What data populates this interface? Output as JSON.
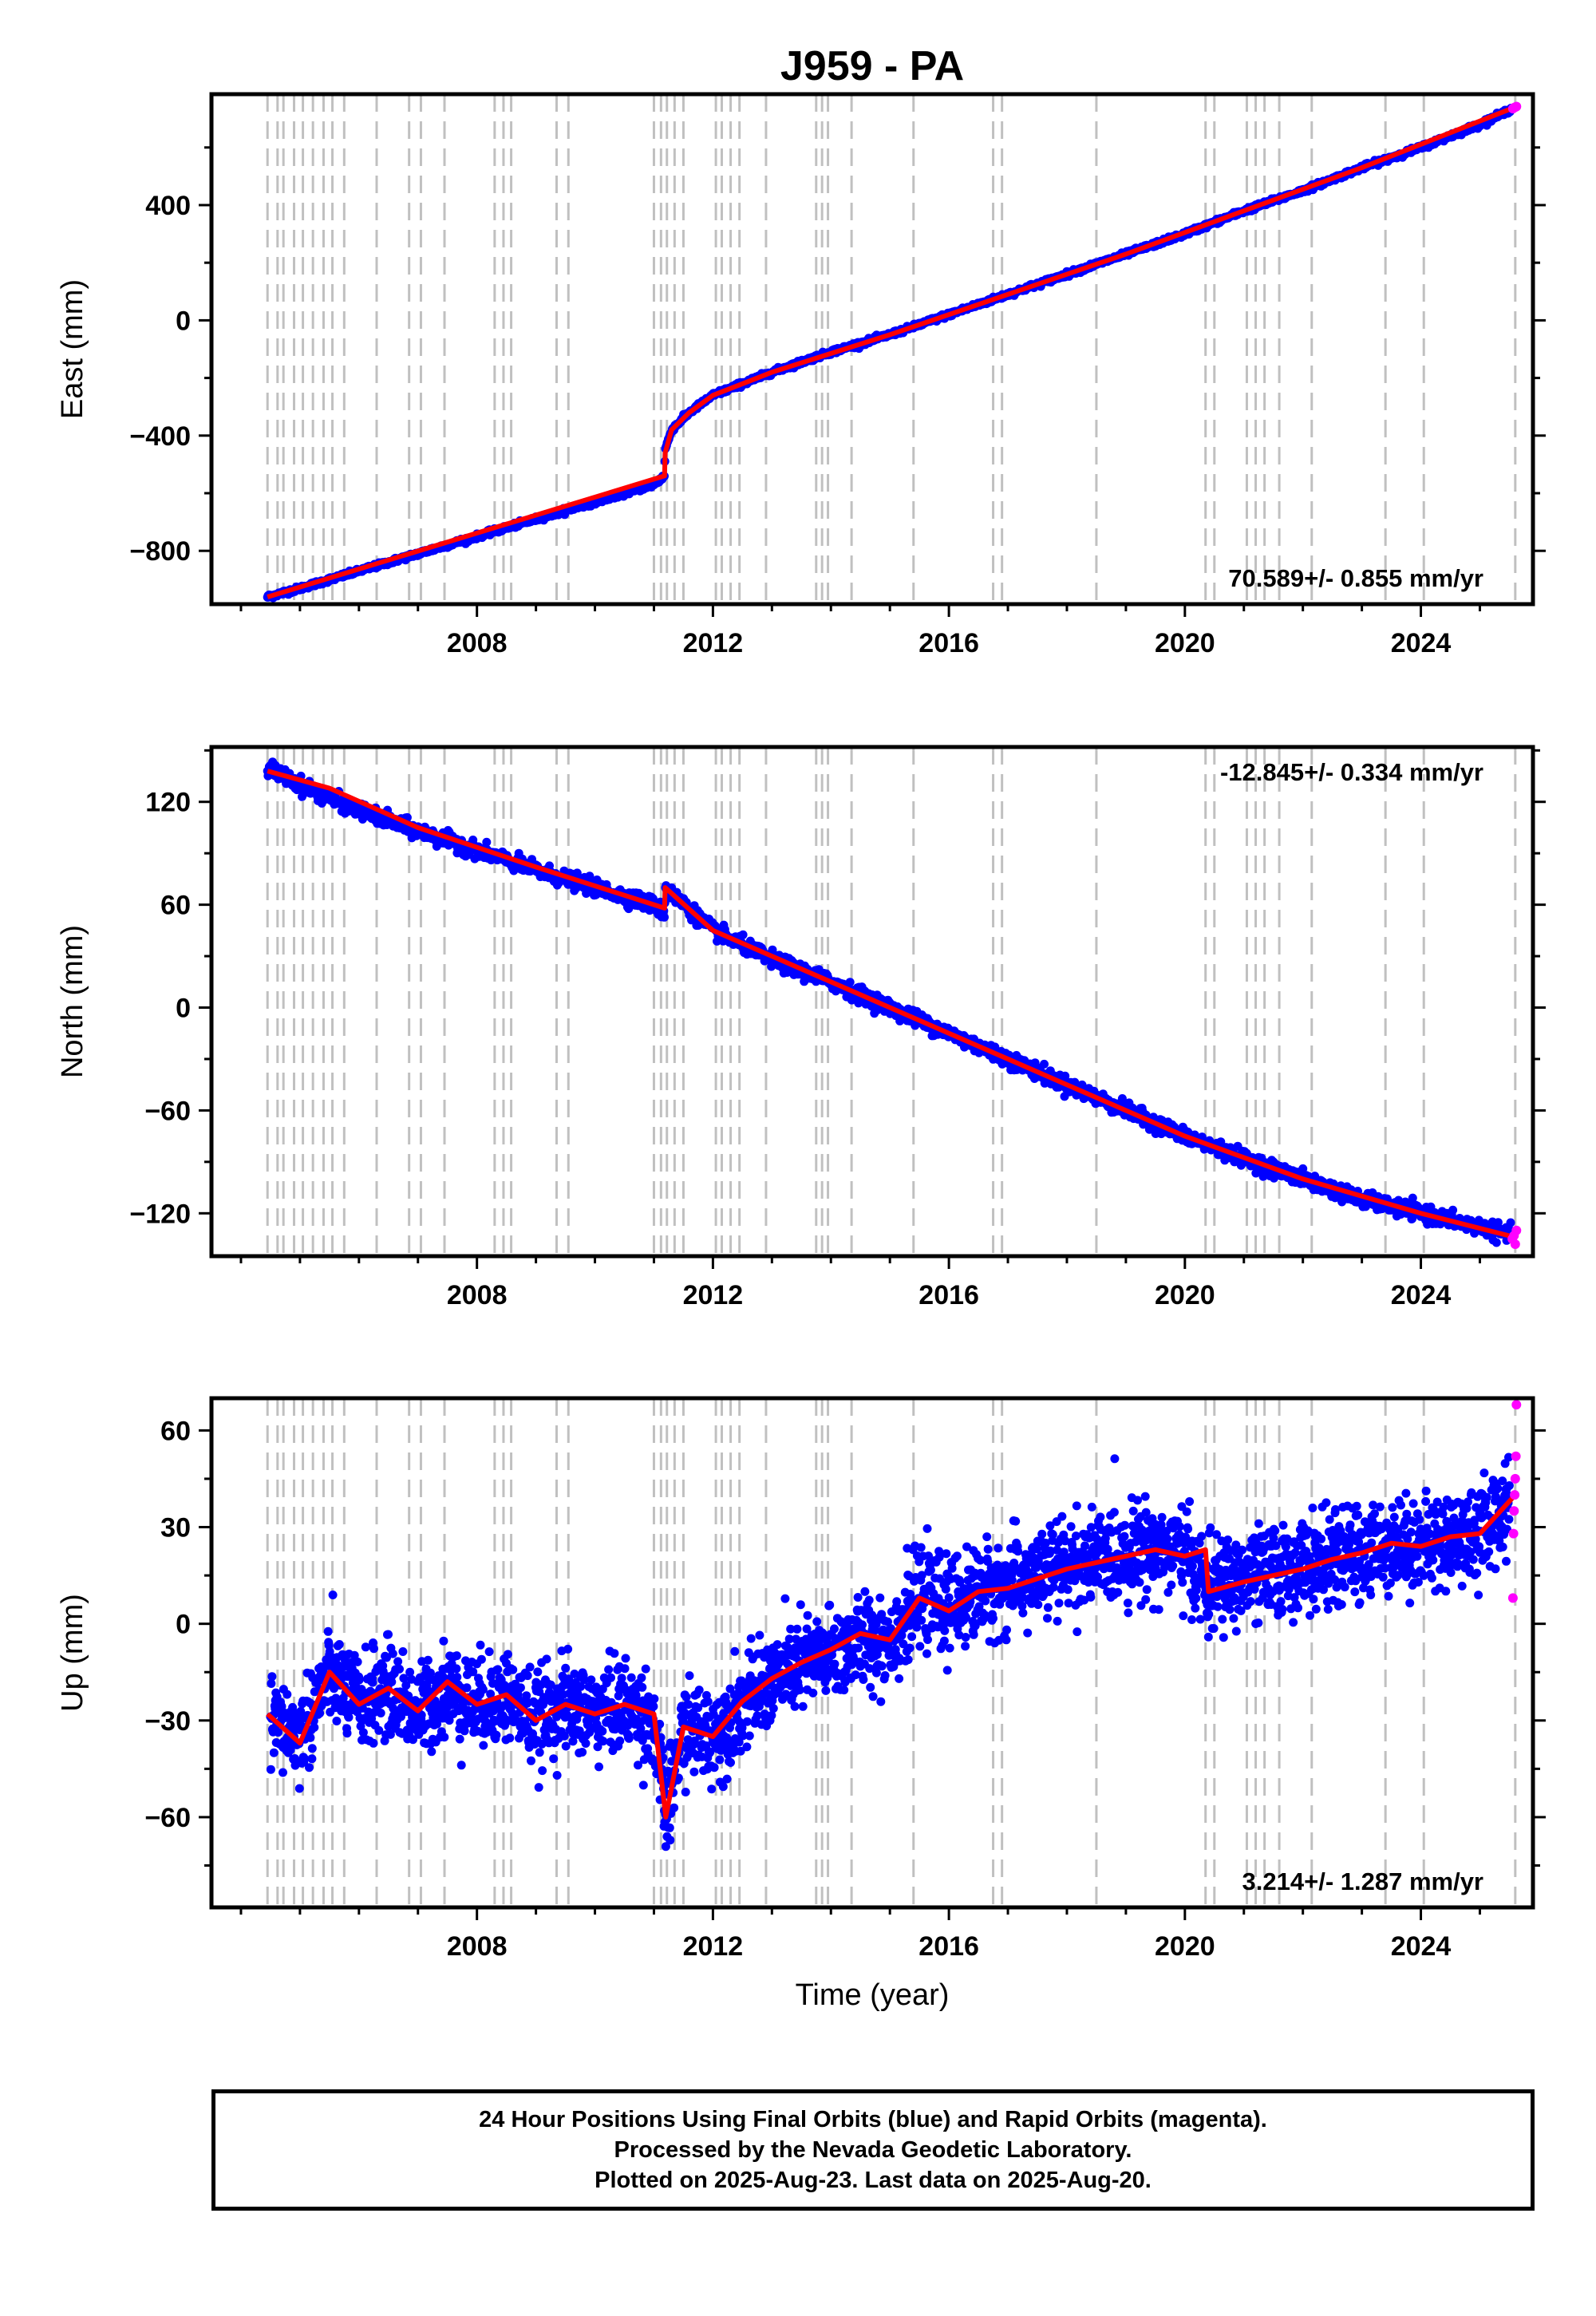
{
  "colors": {
    "final_orbits": "#0000ff",
    "rapid_orbits": "#ff00ff",
    "model_fit": "#ff0000",
    "event_lines": "#c0c0c0"
  },
  "chart_data": {
    "title": "J959 - PA",
    "type": "scatter",
    "xlabel": "Time (year)",
    "xlim": [
      2003.5,
      2025.9
    ],
    "xticks": [
      2008,
      2012,
      2016,
      2020,
      2024
    ],
    "x_minor_tick_step": 1,
    "event_lines_years": [
      2004.45,
      2004.62,
      2004.72,
      2004.9,
      2005.05,
      2005.22,
      2005.4,
      2005.55,
      2005.75,
      2006.3,
      2006.85,
      2007.05,
      2007.45,
      2008.3,
      2008.45,
      2008.58,
      2009.35,
      2009.55,
      2011.0,
      2011.12,
      2011.22,
      2011.35,
      2011.5,
      2012.05,
      2012.15,
      2012.3,
      2012.45,
      2012.9,
      2013.75,
      2013.85,
      2013.95,
      2014.35,
      2015.4,
      2016.75,
      2016.9,
      2018.5,
      2020.35,
      2020.5,
      2021.05,
      2021.2,
      2021.35,
      2021.6,
      2022.15,
      2023.4,
      2024.05,
      2025.6
    ],
    "panels": [
      {
        "component": "East",
        "ylabel": "East (mm)",
        "ylim": [
          -985,
          785
        ],
        "yticks": [
          -800,
          -400,
          0,
          400
        ],
        "y_minor_tick_step": 200,
        "rate": "70.589+/- 0.855 mm/yr",
        "rate_position": "bottom-right",
        "series": [
          {
            "style": "final",
            "x": [
              2004.45,
              2005.0,
              2006.0,
              2007.0,
              2008.0,
              2009.0,
              2010.0,
              2011.0,
              2011.18,
              2011.19,
              2011.3,
              2011.6,
              2012.0,
              2012.5,
              2013.0,
              2014.0,
              2015.0,
              2016.0,
              2017.0,
              2018.0,
              2019.0,
              2020.0,
              2021.0,
              2022.0,
              2023.0,
              2024.0,
              2025.0,
              2025.55
            ],
            "y": [
              -960,
              -930,
              -870,
              -810,
              -750,
              -690,
              -630,
              -570,
              -540,
              -450,
              -380,
              -320,
              -260,
              -220,
              -180,
              -110,
              -50,
              20,
              90,
              160,
              230,
              300,
              380,
              450,
              530,
              600,
              680,
              735
            ]
          },
          {
            "style": "rapid",
            "x": [
              2025.56,
              2025.58,
              2025.6,
              2025.62
            ],
            "y": [
              735,
              738,
              740,
              742
            ]
          }
        ],
        "model": {
          "x": [
            2004.45,
            2011.18,
            2011.19,
            2011.3,
            2011.6,
            2012.0,
            2013.0,
            2015.0,
            2017.0,
            2019.0,
            2021.0,
            2023.0,
            2025.6
          ],
          "y": [
            -960,
            -540,
            -460,
            -380,
            -320,
            -260,
            -180,
            -50,
            90,
            230,
            380,
            530,
            740
          ]
        }
      },
      {
        "component": "North",
        "ylabel": "North (mm)",
        "ylim": [
          -145,
          152
        ],
        "yticks": [
          -120,
          -60,
          0,
          60,
          120
        ],
        "y_minor_tick_step": 30,
        "rate": "-12.845+/- 0.334 mm/yr",
        "rate_position": "top-right",
        "series": [
          {
            "style": "final",
            "x": [
              2004.45,
              2005.0,
              2006.0,
              2007.0,
              2008.0,
              2009.0,
              2010.0,
              2011.0,
              2011.18,
              2011.19,
              2012.0,
              2013.0,
              2014.0,
              2015.0,
              2016.0,
              2017.0,
              2018.0,
              2019.0,
              2020.0,
              2021.0,
              2022.0,
              2023.0,
              2024.0,
              2025.0,
              2025.55
            ],
            "y": [
              140,
              130,
              115,
              103,
              92,
              80,
              70,
              60,
              55,
              70,
              45,
              28,
              15,
              0,
              -15,
              -30,
              -45,
              -60,
              -75,
              -88,
              -100,
              -112,
              -120,
              -128,
              -133
            ]
          },
          {
            "style": "rapid",
            "x": [
              2025.55,
              2025.58,
              2025.6,
              2025.62
            ],
            "y": [
              -135,
              -133,
              -138,
              -130
            ]
          }
        ],
        "model": {
          "x": [
            2004.45,
            2005.5,
            2007.0,
            2009.0,
            2011.18,
            2011.19,
            2012.0,
            2014.0,
            2016.0,
            2018.0,
            2020.0,
            2022.0,
            2024.0,
            2025.6
          ],
          "y": [
            138,
            128,
            105,
            82,
            58,
            70,
            45,
            15,
            -15,
            -45,
            -75,
            -100,
            -120,
            -134
          ]
        }
      },
      {
        "component": "Up",
        "ylabel": "Up (mm)",
        "ylim": [
          -88,
          70
        ],
        "yticks": [
          -60,
          -30,
          0,
          30,
          60
        ],
        "y_minor_tick_step": 15,
        "rate": "3.214+/- 1.287 mm/yr",
        "rate_position": "bottom-right",
        "series": [
          {
            "style": "final",
            "x": [
              2004.5,
              2005.0,
              2005.5,
              2006.0,
              2006.5,
              2007.0,
              2007.5,
              2008.0,
              2008.5,
              2009.0,
              2009.5,
              2010.0,
              2010.5,
              2011.0,
              2011.2,
              2011.5,
              2012.0,
              2012.5,
              2013.0,
              2013.5,
              2014.0,
              2014.5,
              2015.0,
              2015.5,
              2016.0,
              2016.5,
              2017.0,
              2017.5,
              2018.0,
              2018.5,
              2019.0,
              2019.5,
              2020.0,
              2020.4,
              2020.5,
              2021.0,
              2021.5,
              2022.0,
              2022.5,
              2023.0,
              2023.5,
              2024.0,
              2024.5,
              2025.0,
              2025.5
            ],
            "y": [
              -30,
              -35,
              -15,
              -25,
              -20,
              -28,
              -20,
              -25,
              -22,
              -30,
              -25,
              -28,
              -25,
              -30,
              -60,
              -32,
              -35,
              -25,
              -18,
              -12,
              -10,
              -5,
              -5,
              8,
              5,
              10,
              12,
              15,
              18,
              20,
              22,
              24,
              22,
              10,
              12,
              14,
              16,
              18,
              20,
              22,
              25,
              24,
              27,
              28,
              38
            ]
          },
          {
            "style": "rapid",
            "x": [
              2025.56,
              2025.57,
              2025.58,
              2025.59,
              2025.6,
              2025.61,
              2025.62
            ],
            "y": [
              8,
              28,
              35,
              40,
              45,
              52,
              68
            ]
          }
        ],
        "model": {
          "x": [
            2004.45,
            2005.0,
            2005.5,
            2006.0,
            2006.5,
            2007.0,
            2007.5,
            2008.0,
            2008.5,
            2009.0,
            2009.5,
            2010.0,
            2010.5,
            2011.0,
            2011.2,
            2011.5,
            2012.0,
            2012.5,
            2013.0,
            2013.5,
            2014.0,
            2014.5,
            2015.0,
            2015.5,
            2016.0,
            2016.5,
            2017.0,
            2017.5,
            2018.0,
            2018.5,
            2019.0,
            2019.5,
            2020.0,
            2020.35,
            2020.4,
            2021.0,
            2021.5,
            2022.0,
            2022.5,
            2023.0,
            2023.5,
            2024.0,
            2024.5,
            2025.0,
            2025.6
          ],
          "y": [
            -28,
            -37,
            -15,
            -25,
            -20,
            -27,
            -18,
            -25,
            -22,
            -30,
            -25,
            -28,
            -25,
            -28,
            -60,
            -32,
            -35,
            -24,
            -17,
            -12,
            -8,
            -3,
            -5,
            8,
            4,
            10,
            11,
            14,
            17,
            19,
            21,
            23,
            21,
            23,
            10,
            13,
            15,
            17,
            20,
            22,
            25,
            24,
            27,
            28,
            40
          ]
        }
      }
    ]
  },
  "footer": {
    "line1": "24 Hour Positions Using Final Orbits (blue) and Rapid Orbits (magenta).",
    "line2": "Processed by the Nevada Geodetic Laboratory.",
    "line3": "Plotted on 2025-Aug-23. Last data on 2025-Aug-20."
  }
}
